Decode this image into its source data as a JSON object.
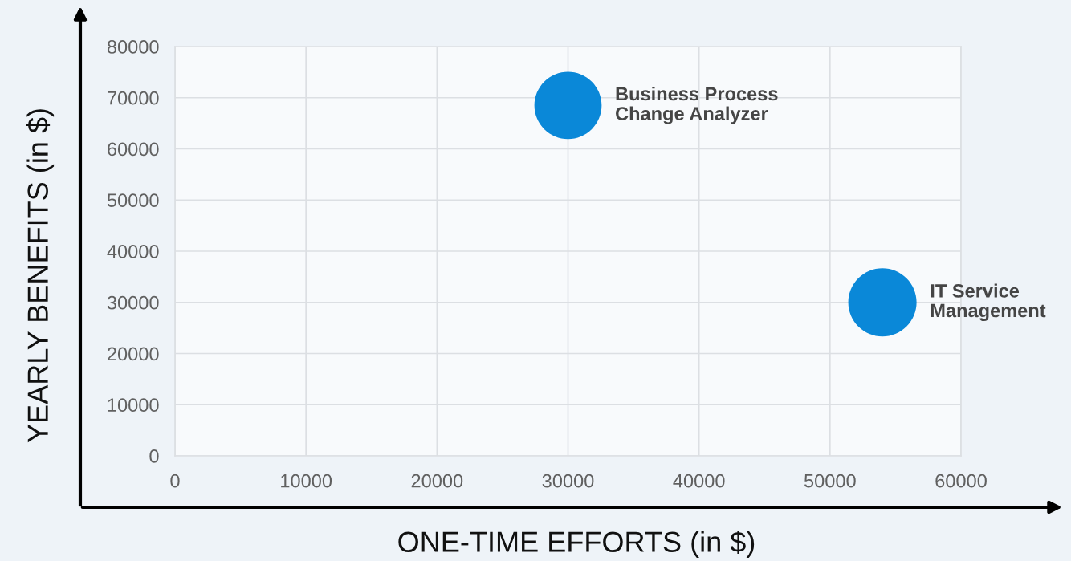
{
  "chart_data": {
    "type": "bubble",
    "xlabel": "ONE-TIME EFFORTS (in $)",
    "ylabel": "YEARLY BENEFITS (in $)",
    "series": [
      {
        "name": "Business Process\nChange Analyzer",
        "color": "#0a88d8",
        "x": [
          30000
        ],
        "values": [
          68500
        ],
        "sizes": [
          0.97
        ]
      },
      {
        "name": "IT Service\nManagement",
        "color": "#0a88d8",
        "x": [
          54000
        ],
        "values": [
          30000
        ],
        "sizes": [
          1
        ]
      }
    ],
    "xlim": [
      0,
      60000
    ],
    "ylim": [
      0,
      80000
    ],
    "xticks": [
      0,
      10000,
      20000,
      30000,
      40000,
      50000,
      60000
    ],
    "yticks": [
      0,
      10000,
      20000,
      30000,
      40000,
      50000,
      60000,
      70000,
      80000
    ],
    "grid": true
  }
}
